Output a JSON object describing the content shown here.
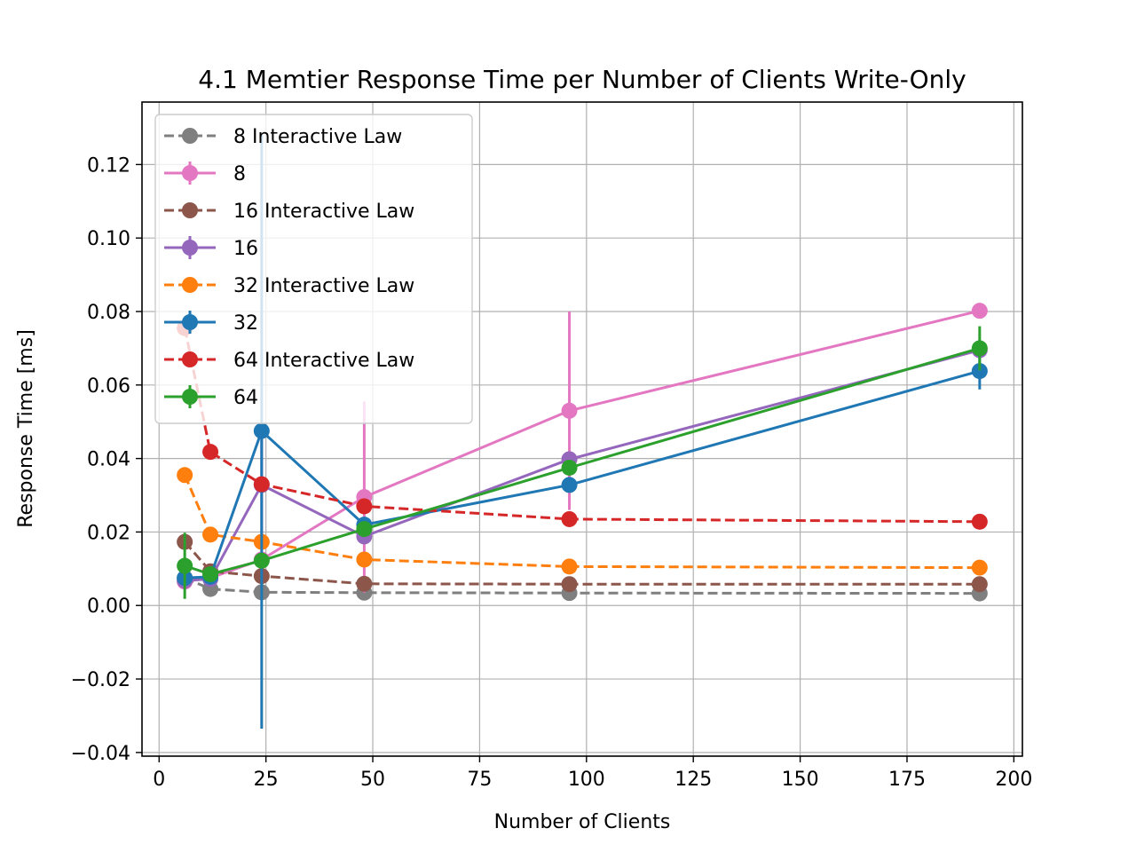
{
  "chart_data": {
    "type": "line",
    "title": "4.1 Memtier Response Time per Number of Clients Write-Only",
    "xlabel": "Number of Clients",
    "ylabel": "Response Time [ms]",
    "xlim": [
      -4,
      202
    ],
    "ylim": [
      -0.041,
      0.137
    ],
    "xticks": [
      0,
      25,
      50,
      75,
      100,
      125,
      150,
      175,
      200
    ],
    "xtick_labels": [
      "0",
      "25",
      "50",
      "75",
      "100",
      "125",
      "150",
      "175",
      "200"
    ],
    "yticks": [
      -0.04,
      -0.02,
      0.0,
      0.02,
      0.04,
      0.06,
      0.08,
      0.1,
      0.12
    ],
    "ytick_labels": [
      "−0.04",
      "−0.02",
      "0.00",
      "0.02",
      "0.04",
      "0.06",
      "0.08",
      "0.10",
      "0.12"
    ],
    "grid": true,
    "legend_position": "upper-left",
    "x": [
      6,
      12,
      24,
      48,
      96,
      192
    ],
    "series": [
      {
        "name": "8 Interactive Law",
        "style": "dashed",
        "color": "#7f7f7f",
        "values": [
          0.0075,
          0.0045,
          0.0036,
          0.0035,
          0.0034,
          0.0033
        ]
      },
      {
        "name": "8",
        "style": "solid",
        "color": "#e377c2",
        "values": [
          0.0065,
          0.0075,
          0.0125,
          0.0295,
          0.053,
          0.0802
        ],
        "errors": [
          0.001,
          0.001,
          0.002,
          0.026,
          0.027,
          0.002
        ]
      },
      {
        "name": "16 Interactive Law",
        "style": "dashed",
        "color": "#8c564b",
        "values": [
          0.0173,
          0.0093,
          0.008,
          0.0059,
          0.0058,
          0.0058
        ]
      },
      {
        "name": "16",
        "style": "solid",
        "color": "#9467bd",
        "values": [
          0.0068,
          0.0072,
          0.0328,
          0.0188,
          0.0398,
          0.0695
        ],
        "errors": [
          0.001,
          0.001,
          0.016,
          0.002,
          0.002,
          0.002
        ]
      },
      {
        "name": "32 Interactive Law",
        "style": "dashed",
        "color": "#ff7f0e",
        "values": [
          0.0355,
          0.0193,
          0.0173,
          0.0125,
          0.0106,
          0.0103
        ]
      },
      {
        "name": "32",
        "style": "solid",
        "color": "#1f77b4",
        "values": [
          0.0075,
          0.0078,
          0.0475,
          0.022,
          0.0328,
          0.0638
        ],
        "errors": [
          0.001,
          0.001,
          0.081,
          0.002,
          0.002,
          0.005
        ]
      },
      {
        "name": "64 Interactive Law",
        "style": "dashed",
        "color": "#d62728",
        "values": [
          0.0755,
          0.0418,
          0.033,
          0.027,
          0.0235,
          0.0228
        ]
      },
      {
        "name": "64",
        "style": "solid",
        "color": "#2ca02c",
        "values": [
          0.0108,
          0.0085,
          0.0122,
          0.0208,
          0.0375,
          0.07
        ],
        "errors": [
          0.009,
          0.001,
          0.002,
          0.002,
          0.002,
          0.006
        ]
      }
    ]
  }
}
